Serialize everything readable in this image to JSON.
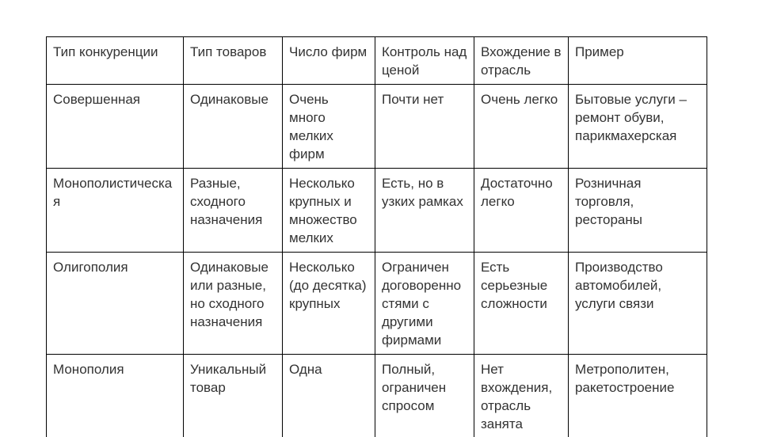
{
  "document": {
    "background": "#ffffff",
    "table": {
      "border_color": "#000000",
      "text_color": "#333333",
      "headers": [
        "Тип конкуренции",
        "Тип товаров",
        "Число фирм",
        "Контроль над ценой",
        "Вхождение в отрасль",
        "Пример"
      ],
      "rows": [
        [
          "Совершенная",
          "Одинаковые",
          "Очень много мелких фирм",
          "Почти нет",
          "Очень легко",
          "Бытовые услуги – ремонт обуви, парикмахерская"
        ],
        [
          "Монополистическая",
          "Разные, сходного назначения",
          "Несколько крупных и множество мелких",
          "Есть, но в узких рамках",
          "Достаточно легко",
          "Розничная торговля, рестораны"
        ],
        [
          "Олигополия",
          "Одинаковые или разные, но сходного назначения",
          "Несколько (до десятка) крупных",
          "Ограничен договоренностями с другими фирмами",
          "Есть серьезные сложности",
          "Производство автомобилей, услуги связи"
        ],
        [
          "Монополия",
          "Уникальный товар",
          "Одна",
          "Полный, ограничен спросом",
          "Нет вхождения, отрасль занята",
          "Метрополитен, ракетостроение"
        ]
      ]
    }
  }
}
